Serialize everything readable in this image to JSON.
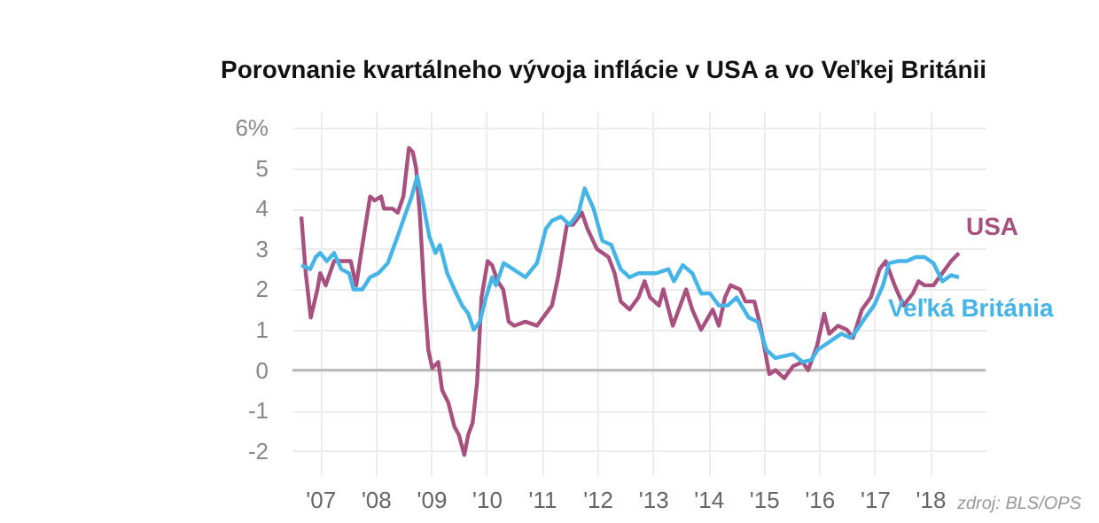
{
  "chart_data": {
    "type": "line",
    "title": "Porovnanie kvartálneho vývoja inflácie v USA a vo Veľkej Británii",
    "annotations": [
      "zdroj: BLS/OPS"
    ],
    "xlim": [
      2006.5,
      2019
    ],
    "xticks": [
      {
        "value": 2007,
        "label": "'07"
      },
      {
        "value": 2008,
        "label": "'08"
      },
      {
        "value": 2009,
        "label": "'09"
      },
      {
        "value": 2010,
        "label": "'10"
      },
      {
        "value": 2011,
        "label": "'11"
      },
      {
        "value": 2012,
        "label": "'12"
      },
      {
        "value": 2013,
        "label": "'13"
      },
      {
        "value": 2014,
        "label": "'14"
      },
      {
        "value": 2015,
        "label": "'15"
      },
      {
        "value": 2016,
        "label": "'16"
      },
      {
        "value": 2017,
        "label": "'17"
      },
      {
        "value": 2018,
        "label": "'18"
      }
    ],
    "ylim": [
      -2.6,
      6.4
    ],
    "yticks": [
      -2,
      -1,
      0,
      1,
      2,
      3,
      4,
      5,
      {
        "value": 6,
        "label": "6%"
      }
    ],
    "grid": true,
    "legend": false,
    "ref_lines": [
      {
        "axis": "y",
        "value": 0,
        "color": "#bbbbbb"
      }
    ],
    "series": [
      {
        "name": "USA",
        "color": "#a8507f",
        "x": [
          2006.66,
          2006.74,
          2006.83,
          2006.95,
          2007.0,
          2007.1,
          2007.25,
          2007.4,
          2007.55,
          2007.65,
          2007.75,
          2007.9,
          2007.98,
          2008.1,
          2008.15,
          2008.3,
          2008.4,
          2008.5,
          2008.6,
          2008.67,
          2008.73,
          2008.8,
          2008.88,
          2008.95,
          2009.02,
          2009.13,
          2009.2,
          2009.31,
          2009.42,
          2009.5,
          2009.6,
          2009.67,
          2009.75,
          2009.83,
          2009.91,
          2010.02,
          2010.1,
          2010.2,
          2010.3,
          2010.4,
          2010.5,
          2010.7,
          2010.91,
          2011.18,
          2011.29,
          2011.45,
          2011.56,
          2011.72,
          2011.82,
          2011.99,
          2012.2,
          2012.31,
          2012.42,
          2012.58,
          2012.74,
          2012.85,
          2012.95,
          2013.11,
          2013.19,
          2013.36,
          2013.6,
          2013.71,
          2013.87,
          2014.08,
          2014.19,
          2014.3,
          2014.4,
          2014.57,
          2014.67,
          2014.83,
          2014.94,
          2015.1,
          2015.21,
          2015.37,
          2015.53,
          2015.7,
          2015.8,
          2015.96,
          2016.09,
          2016.18,
          2016.34,
          2016.5,
          2016.61,
          2016.77,
          2016.93,
          2017.09,
          2017.2,
          2017.36,
          2017.52,
          2017.69,
          2017.79,
          2017.9,
          2018.06,
          2018.22,
          2018.38,
          2018.52
        ],
        "values": [
          3.8,
          2.4,
          1.3,
          2.0,
          2.4,
          2.1,
          2.7,
          2.7,
          2.7,
          2.1,
          3.0,
          4.3,
          4.2,
          4.3,
          4.0,
          4.0,
          3.9,
          4.3,
          5.5,
          5.4,
          5.0,
          3.8,
          1.8,
          0.5,
          0.05,
          0.2,
          -0.5,
          -0.8,
          -1.4,
          -1.6,
          -2.1,
          -1.6,
          -1.3,
          -0.3,
          1.8,
          2.7,
          2.6,
          2.2,
          2.0,
          1.2,
          1.1,
          1.2,
          1.1,
          1.6,
          2.3,
          3.6,
          3.6,
          3.9,
          3.5,
          3.0,
          2.8,
          2.4,
          1.7,
          1.5,
          1.8,
          2.2,
          1.8,
          1.6,
          2.0,
          1.1,
          2.0,
          1.5,
          1.0,
          1.5,
          1.1,
          1.8,
          2.1,
          2.0,
          1.7,
          1.7,
          1.1,
          -0.1,
          0.0,
          -0.2,
          0.1,
          0.2,
          0.0,
          0.6,
          1.4,
          0.9,
          1.1,
          1.0,
          0.8,
          1.5,
          1.8,
          2.5,
          2.7,
          2.1,
          1.6,
          1.9,
          2.2,
          2.1,
          2.1,
          2.4,
          2.7,
          2.9
        ]
      },
      {
        "name": "Veľká Británia",
        "color": "#45b4e6",
        "x": [
          2006.66,
          2006.82,
          2006.92,
          2007.0,
          2007.12,
          2007.25,
          2007.38,
          2007.52,
          2007.6,
          2007.76,
          2007.9,
          2008.05,
          2008.22,
          2008.38,
          2008.52,
          2008.65,
          2008.75,
          2008.86,
          2008.97,
          2009.08,
          2009.16,
          2009.29,
          2009.42,
          2009.56,
          2009.67,
          2009.77,
          2009.88,
          2009.99,
          2010.1,
          2010.17,
          2010.31,
          2010.48,
          2010.7,
          2010.91,
          2011.07,
          2011.18,
          2011.34,
          2011.5,
          2011.66,
          2011.77,
          2011.93,
          2012.09,
          2012.25,
          2012.42,
          2012.58,
          2012.74,
          2012.85,
          2013.06,
          2013.28,
          2013.38,
          2013.54,
          2013.71,
          2013.87,
          2014.03,
          2014.19,
          2014.35,
          2014.51,
          2014.73,
          2014.89,
          2015.05,
          2015.21,
          2015.37,
          2015.53,
          2015.7,
          2015.86,
          2015.97,
          2016.13,
          2016.29,
          2016.4,
          2016.56,
          2016.66,
          2016.83,
          2016.99,
          2017.15,
          2017.26,
          2017.42,
          2017.58,
          2017.74,
          2017.9,
          2018.06,
          2018.22,
          2018.38,
          2018.52
        ],
        "values": [
          2.6,
          2.5,
          2.8,
          2.9,
          2.7,
          2.9,
          2.5,
          2.4,
          2.0,
          2.0,
          2.3,
          2.4,
          2.65,
          3.25,
          3.8,
          4.3,
          4.8,
          4.1,
          3.3,
          2.9,
          3.1,
          2.4,
          2.0,
          1.6,
          1.4,
          1.0,
          1.2,
          1.8,
          2.3,
          2.1,
          2.65,
          2.5,
          2.3,
          2.65,
          3.5,
          3.7,
          3.8,
          3.6,
          3.9,
          4.5,
          4.0,
          3.2,
          3.1,
          2.5,
          2.3,
          2.4,
          2.4,
          2.4,
          2.5,
          2.2,
          2.6,
          2.4,
          1.9,
          1.9,
          1.6,
          1.6,
          1.8,
          1.3,
          1.2,
          0.5,
          0.3,
          0.35,
          0.4,
          0.2,
          0.25,
          0.5,
          0.65,
          0.8,
          0.9,
          0.8,
          0.95,
          1.3,
          1.6,
          2.1,
          2.65,
          2.7,
          2.7,
          2.8,
          2.8,
          2.65,
          2.2,
          2.35,
          2.3
        ]
      }
    ]
  }
}
